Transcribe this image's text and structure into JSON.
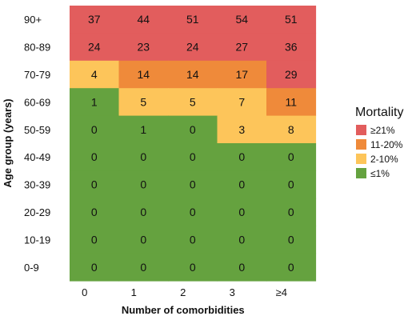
{
  "chart_data": {
    "type": "heatmap",
    "title": "",
    "xlabel": "Number of comorbidities",
    "ylabel": "Age group (years)",
    "x_categories": [
      "0",
      "1",
      "2",
      "3",
      "≥4"
    ],
    "y_categories": [
      "90+",
      "80-89",
      "70-79",
      "60-69",
      "50-59",
      "40-49",
      "30-39",
      "20-29",
      "10-19",
      "0-9"
    ],
    "values": [
      [
        37,
        44,
        51,
        54,
        51
      ],
      [
        24,
        23,
        24,
        27,
        36
      ],
      [
        4,
        14,
        14,
        17,
        29
      ],
      [
        1,
        5,
        5,
        7,
        11
      ],
      [
        0,
        1,
        0,
        3,
        8
      ],
      [
        0,
        0,
        0,
        0,
        0
      ],
      [
        0,
        0,
        0,
        0,
        0
      ],
      [
        0,
        0,
        0,
        0,
        0
      ],
      [
        0,
        0,
        0,
        0,
        0
      ],
      [
        0,
        0,
        0,
        0,
        0
      ]
    ],
    "color_bins": [
      {
        "label": "≥21%",
        "min": 21,
        "color": "#e25d5d"
      },
      {
        "label": "11-20%",
        "min": 11,
        "color": "#ef8a3a"
      },
      {
        "label": "2-10%",
        "min": 2,
        "color": "#fdc55a"
      },
      {
        "label": "≤1%",
        "min": -1,
        "color": "#65a23f"
      }
    ],
    "legend": {
      "title": "Mortality",
      "position": "right"
    },
    "grid": false
  }
}
